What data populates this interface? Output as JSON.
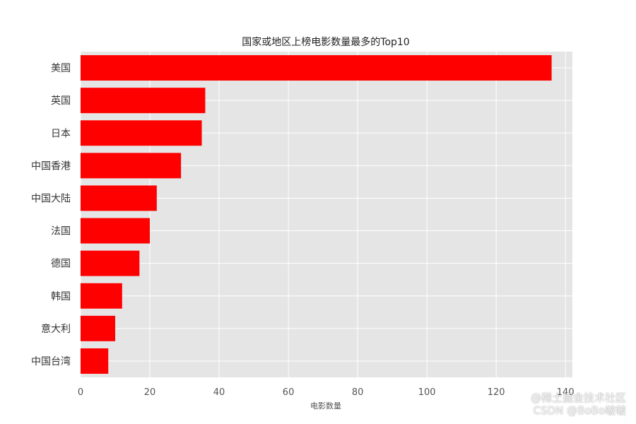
{
  "chart_data": {
    "type": "bar",
    "orientation": "horizontal",
    "title": "国家或地区上榜电影数量最多的Top10",
    "xlabel": "电影数量",
    "ylabel": "",
    "categories": [
      "美国",
      "英国",
      "日本",
      "中国香港",
      "中国大陆",
      "法国",
      "德国",
      "韩国",
      "意大利",
      "中国台湾"
    ],
    "values": [
      136,
      36,
      35,
      29,
      22,
      20,
      17,
      12,
      10,
      8
    ],
    "xlim": [
      0,
      142
    ],
    "xticks": [
      0,
      20,
      40,
      60,
      80,
      100,
      120,
      140
    ],
    "grid": true,
    "bar_color": "#ff0000",
    "background_color": "#e5e5e5",
    "grid_color": "#ffffff"
  },
  "watermark": {
    "line1": "@稀土掘金技术社区",
    "line2": "CSDN @BoBo啵啵"
  }
}
